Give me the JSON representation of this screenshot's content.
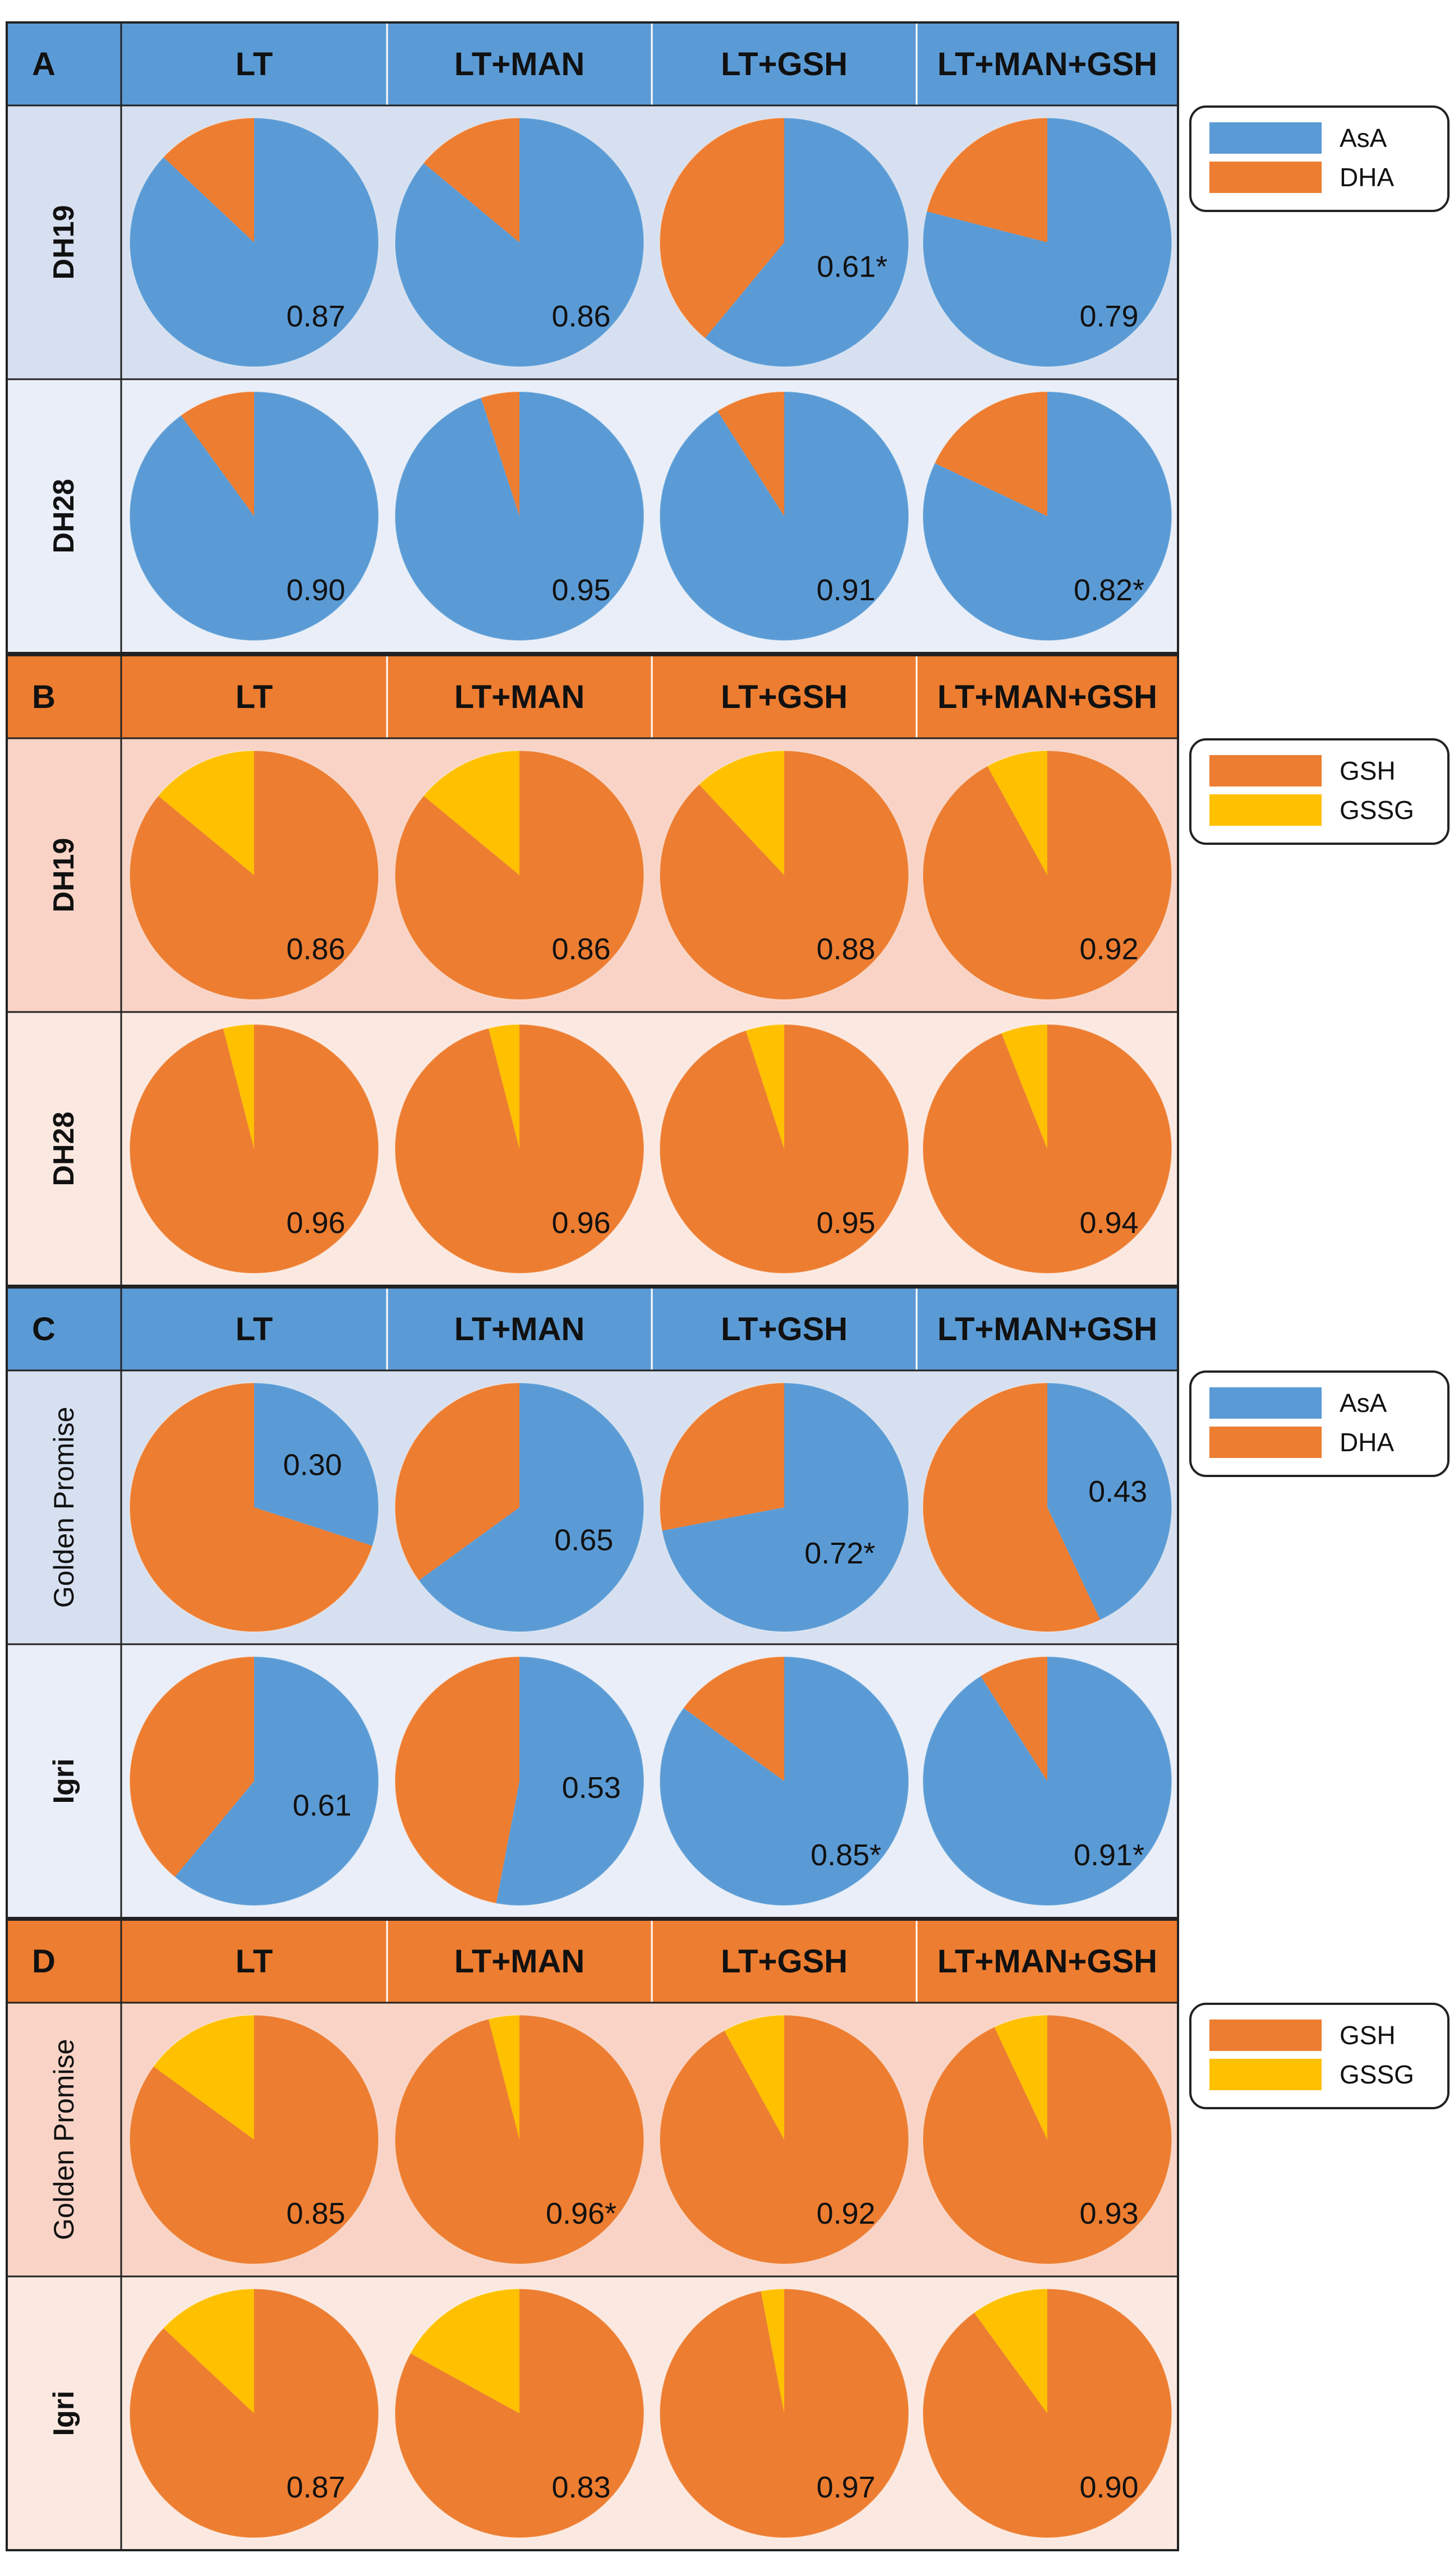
{
  "colors": {
    "asa_blue": "#5b9bd5",
    "dha_orange": "#ed7d31",
    "gsh_orange": "#ed7d31",
    "gssg_yellow": "#ffc000",
    "blue_header": "#5b9bd5",
    "orange_header": "#ed7d31",
    "blue_row_light": "#d6e0f0",
    "blue_row_lighter": "#e9eef8",
    "orange_row_light": "#f8d3c6",
    "orange_row_lighter": "#fbe9e1"
  },
  "chart_data": [
    {
      "type": "pie",
      "panel": "A",
      "columns": [
        "LT",
        "LT+MAN",
        "LT+GSH",
        "LT+MAN+GSH"
      ],
      "rows": [
        "DH19",
        "DH28"
      ],
      "legend": [
        "AsA",
        "DHA"
      ],
      "legend_placement": "right",
      "values": [
        [
          {
            "value": 0.87,
            "label": "0.87"
          },
          {
            "value": 0.86,
            "label": "0.86"
          },
          {
            "value": 0.61,
            "label": "0.61*"
          },
          {
            "value": 0.79,
            "label": "0.79"
          }
        ],
        [
          {
            "value": 0.9,
            "label": "0.90"
          },
          {
            "value": 0.95,
            "label": "0.95"
          },
          {
            "value": 0.91,
            "label": "0.91"
          },
          {
            "value": 0.82,
            "label": "0.82*"
          }
        ]
      ]
    },
    {
      "type": "pie",
      "panel": "B",
      "columns": [
        "LT",
        "LT+MAN",
        "LT+GSH",
        "LT+MAN+GSH"
      ],
      "rows": [
        "DH19",
        "DH28"
      ],
      "legend": [
        "GSH",
        "GSSG"
      ],
      "legend_placement": "right",
      "values": [
        [
          {
            "value": 0.86,
            "label": "0.86"
          },
          {
            "value": 0.86,
            "label": "0.86"
          },
          {
            "value": 0.88,
            "label": "0.88"
          },
          {
            "value": 0.92,
            "label": "0.92"
          }
        ],
        [
          {
            "value": 0.96,
            "label": "0.96"
          },
          {
            "value": 0.96,
            "label": "0.96"
          },
          {
            "value": 0.95,
            "label": "0.95"
          },
          {
            "value": 0.94,
            "label": "0.94"
          }
        ]
      ]
    },
    {
      "type": "pie",
      "panel": "C",
      "columns": [
        "LT",
        "LT+MAN",
        "LT+GSH",
        "LT+MAN+GSH"
      ],
      "rows": [
        "Golden Promise",
        "Igri"
      ],
      "legend": [
        "AsA",
        "DHA"
      ],
      "legend_placement": "right",
      "values": [
        [
          {
            "value": 0.3,
            "label": "0.30"
          },
          {
            "value": 0.65,
            "label": "0.65"
          },
          {
            "value": 0.72,
            "label": "0.72*"
          },
          {
            "value": 0.43,
            "label": "0.43"
          }
        ],
        [
          {
            "value": 0.61,
            "label": "0.61"
          },
          {
            "value": 0.53,
            "label": "0.53"
          },
          {
            "value": 0.85,
            "label": "0.85*"
          },
          {
            "value": 0.91,
            "label": "0.91*"
          }
        ]
      ]
    },
    {
      "type": "pie",
      "panel": "D",
      "columns": [
        "LT",
        "LT+MAN",
        "LT+GSH",
        "LT+MAN+GSH"
      ],
      "rows": [
        "Golden Promise",
        "Igri"
      ],
      "legend": [
        "GSH",
        "GSSG"
      ],
      "legend_placement": "right",
      "values": [
        [
          {
            "value": 0.85,
            "label": "0.85"
          },
          {
            "value": 0.96,
            "label": "0.96*"
          },
          {
            "value": 0.92,
            "label": "0.92"
          },
          {
            "value": 0.93,
            "label": "0.93"
          }
        ],
        [
          {
            "value": 0.87,
            "label": "0.87"
          },
          {
            "value": 0.83,
            "label": "0.83"
          },
          {
            "value": 0.97,
            "label": "0.97"
          },
          {
            "value": 0.9,
            "label": "0.90"
          }
        ]
      ]
    }
  ]
}
